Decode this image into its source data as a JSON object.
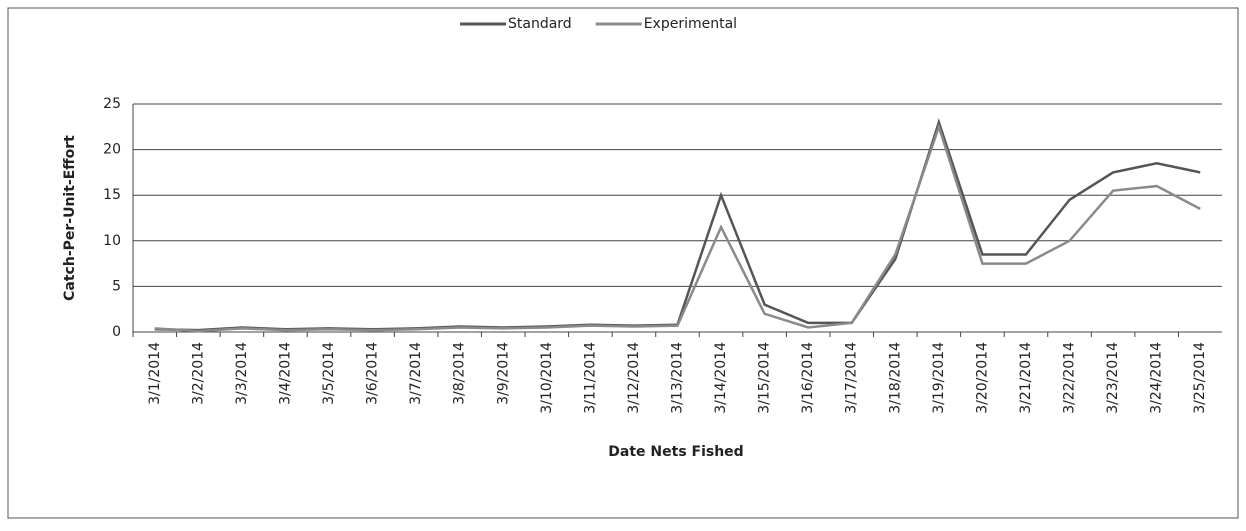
{
  "chart_data": {
    "type": "line",
    "x_label": "Date Nets Fished",
    "y_label": "Catch-Per-Unit-Effort",
    "categories": [
      "3/1/2014",
      "3/2/2014",
      "3/3/2014",
      "3/4/2014",
      "3/5/2014",
      "3/6/2014",
      "3/7/2014",
      "3/8/2014",
      "3/9/2014",
      "3/10/2014",
      "3/11/2014",
      "3/12/2014",
      "3/13/2014",
      "3/14/2014",
      "3/15/2014",
      "3/16/2014",
      "3/17/2014",
      "3/18/2014",
      "3/19/2014",
      "3/20/2014",
      "3/21/2014",
      "3/22/2014",
      "3/23/2014",
      "3/24/2014",
      "3/25/2014"
    ],
    "series": [
      {
        "name": "Standard",
        "color": "#555555",
        "values": [
          0.3,
          0.2,
          0.5,
          0.3,
          0.4,
          0.3,
          0.4,
          0.6,
          0.5,
          0.6,
          0.8,
          0.7,
          0.8,
          15,
          3,
          1,
          1,
          8,
          23,
          8.5,
          8.5,
          14.5,
          17.5,
          18.5,
          17.5
        ]
      },
      {
        "name": "Experimental",
        "color": "#8a8a8a",
        "values": [
          0.4,
          0.1,
          0.4,
          0.2,
          0.3,
          0.2,
          0.3,
          0.5,
          0.4,
          0.5,
          0.7,
          0.6,
          0.7,
          11.5,
          2,
          0.5,
          1,
          8.5,
          22.5,
          7.5,
          7.5,
          10,
          15.5,
          16,
          13.5
        ]
      }
    ],
    "ylim": [
      0,
      25
    ],
    "yticks": [
      0,
      5,
      10,
      15,
      20,
      25
    ],
    "grid": true
  }
}
